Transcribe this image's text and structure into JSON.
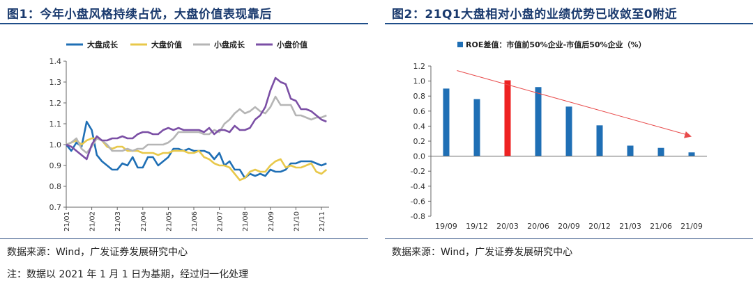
{
  "left": {
    "title": "图1：今年小盘风格持续占优，大盘价值表现靠后",
    "source": "数据来源：Wind，广发证券发展研究中心",
    "note": "注：数据以 2021 年 1 月 1 日为基期，经过归一化处理"
  },
  "right": {
    "title": "图2：21Q1大盘相对小盘的业绩优势已收敛至0附近",
    "source": "数据来源：Wind，广发证券发展研究中心"
  },
  "chart_data": [
    {
      "type": "line",
      "title": "今年小盘风格持续占优，大盘价值表现靠后",
      "x_ticks": [
        "21/01",
        "21/02",
        "21/03",
        "21/04",
        "21/05",
        "21/06",
        "21/07",
        "21/08",
        "21/09",
        "21/10",
        "21/11"
      ],
      "y_ticks": [
        "1.4",
        "1.3",
        "1.2",
        "1.1",
        "1.0",
        "0.9",
        "0.8",
        "0.7"
      ],
      "ylim": [
        0.7,
        1.4
      ],
      "xlim": [
        0,
        10.3
      ],
      "x": [
        0,
        0.2,
        0.4,
        0.6,
        0.8,
        1.0,
        1.2,
        1.4,
        1.6,
        1.8,
        2.0,
        2.2,
        2.4,
        2.6,
        2.8,
        3.0,
        3.2,
        3.4,
        3.6,
        3.8,
        4.0,
        4.2,
        4.4,
        4.6,
        4.8,
        5.0,
        5.2,
        5.4,
        5.6,
        5.8,
        6.0,
        6.2,
        6.4,
        6.6,
        6.8,
        7.0,
        7.2,
        7.4,
        7.6,
        7.8,
        8.0,
        8.2,
        8.4,
        8.6,
        8.8,
        9.0,
        9.2,
        9.4,
        9.6,
        9.8,
        10.0,
        10.2
      ],
      "series": [
        {
          "name": "大盘成长",
          "color": "#1f6fb5",
          "values": [
            1.0,
            0.97,
            1.01,
            0.99,
            1.11,
            1.07,
            0.95,
            0.92,
            0.9,
            0.88,
            0.88,
            0.91,
            0.9,
            0.94,
            0.89,
            0.89,
            0.94,
            0.94,
            0.9,
            0.92,
            0.94,
            0.98,
            0.98,
            0.97,
            0.98,
            0.97,
            0.97,
            0.97,
            0.96,
            0.93,
            0.96,
            0.9,
            0.92,
            0.88,
            0.88,
            0.84,
            0.86,
            0.85,
            0.86,
            0.85,
            0.88,
            0.87,
            0.87,
            0.88,
            0.91,
            0.91,
            0.92,
            0.92,
            0.92,
            0.91,
            0.9,
            0.91
          ]
        },
        {
          "name": "大盘价值",
          "color": "#e8c84a",
          "values": [
            1.0,
            1.01,
            1.02,
            1.0,
            1.02,
            1.03,
            1.03,
            1.02,
            0.99,
            0.98,
            0.99,
            0.99,
            0.97,
            0.97,
            0.97,
            0.96,
            0.96,
            0.96,
            0.95,
            0.96,
            0.96,
            0.97,
            0.97,
            0.97,
            0.96,
            0.96,
            0.97,
            0.94,
            0.93,
            0.91,
            0.9,
            0.9,
            0.89,
            0.86,
            0.83,
            0.84,
            0.87,
            0.88,
            0.87,
            0.87,
            0.9,
            0.92,
            0.93,
            0.89,
            0.9,
            0.89,
            0.89,
            0.9,
            0.91,
            0.87,
            0.86,
            0.88
          ]
        },
        {
          "name": "小盘成长",
          "color": "#b5b5b5",
          "values": [
            1.0,
            1.01,
            1.03,
            0.98,
            0.96,
            0.99,
            1.03,
            1.02,
            1.0,
            0.97,
            0.97,
            0.97,
            0.98,
            0.97,
            0.98,
            0.98,
            1.0,
            1.0,
            1.0,
            1.0,
            1.01,
            1.03,
            1.06,
            1.06,
            1.06,
            1.06,
            1.06,
            1.05,
            1.05,
            1.07,
            1.06,
            1.1,
            1.12,
            1.15,
            1.17,
            1.15,
            1.16,
            1.18,
            1.16,
            1.15,
            1.18,
            1.23,
            1.19,
            1.19,
            1.19,
            1.14,
            1.14,
            1.13,
            1.12,
            1.13,
            1.13,
            1.14
          ]
        },
        {
          "name": "小盘价值",
          "color": "#7b4fa5",
          "values": [
            1.0,
            0.99,
            0.97,
            0.95,
            0.93,
            1.0,
            1.04,
            1.02,
            1.02,
            1.03,
            1.03,
            1.04,
            1.03,
            1.03,
            1.05,
            1.06,
            1.06,
            1.05,
            1.05,
            1.07,
            1.08,
            1.07,
            1.08,
            1.07,
            1.07,
            1.07,
            1.07,
            1.06,
            1.08,
            1.05,
            1.07,
            1.07,
            1.06,
            1.09,
            1.07,
            1.07,
            1.08,
            1.12,
            1.14,
            1.18,
            1.26,
            1.32,
            1.3,
            1.29,
            1.22,
            1.21,
            1.17,
            1.17,
            1.16,
            1.14,
            1.12,
            1.11
          ]
        }
      ]
    },
    {
      "type": "bar",
      "title": "21Q1大盘相对小盘的业绩优势已收敛至0附近",
      "legend": "ROE差值：市值前50%企业-市值后50%企业（%）",
      "categories": [
        "19/09",
        "19/12",
        "20/03",
        "20/06",
        "20/09",
        "20/12",
        "21/03",
        "21/06",
        "21/09"
      ],
      "values": [
        0.9,
        0.76,
        1.01,
        0.92,
        0.66,
        0.41,
        0.14,
        0.11,
        0.05
      ],
      "colors": [
        "#1f6fb5",
        "#1f6fb5",
        "#ee2222",
        "#1f6fb5",
        "#1f6fb5",
        "#1f6fb5",
        "#1f6fb5",
        "#1f6fb5",
        "#1f6fb5"
      ],
      "y_ticks": [
        "1.2",
        "1.0",
        "0.8",
        "0.6",
        "0.4",
        "0.2",
        "0.0",
        "-0.2",
        "-0.4",
        "-0.6",
        "-0.8"
      ],
      "ylim": [
        -0.8,
        1.2
      ],
      "trend_arrow": {
        "from": [
          0.85,
          1.14
        ],
        "to": [
          8.5,
          0.26
        ],
        "color": "#e84a4a"
      }
    }
  ]
}
